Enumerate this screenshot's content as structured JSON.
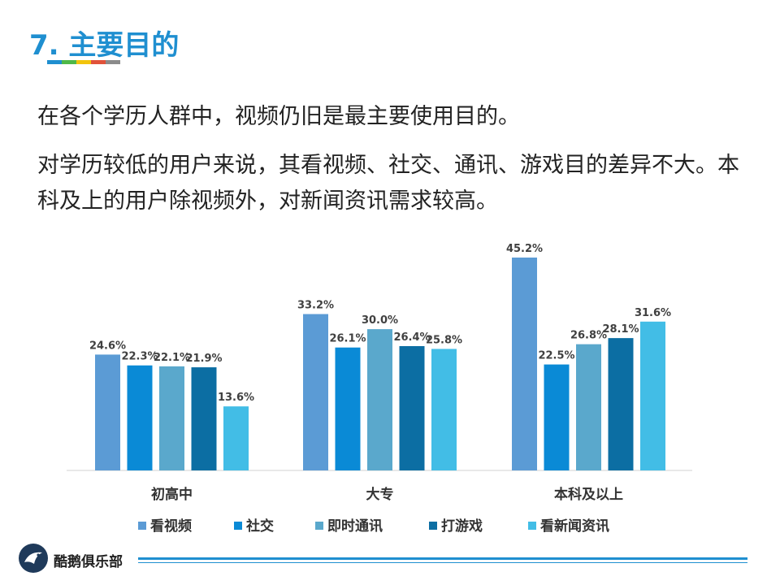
{
  "header": {
    "title": "7. 主要目的",
    "bar_colors": [
      "#1f8fd0",
      "#4fb848",
      "#f2c40c",
      "#e0523a",
      "#8b8b8b"
    ]
  },
  "body": {
    "paragraph1": "在各个学历人群中，视频仍旧是最主要使用目的。",
    "paragraph2": "对学历较低的用户来说，其看视频、社交、通讯、游戏目的差异不大。本科及上的用户除视频外，对新闻资讯需求较高。"
  },
  "chart_data": {
    "type": "bar",
    "categories": [
      "初高中",
      "大专",
      "本科及以上"
    ],
    "series": [
      {
        "name": "看视频",
        "color": "#5b9bd5",
        "values": [
          24.6,
          33.2,
          45.2
        ]
      },
      {
        "name": "社交",
        "color": "#0a8ad6",
        "values": [
          22.3,
          26.1,
          22.5
        ]
      },
      {
        "name": "即时通讯",
        "color": "#5aa8cc",
        "values": [
          22.1,
          30.0,
          26.8
        ]
      },
      {
        "name": "打游戏",
        "color": "#0c6ea3",
        "values": [
          21.9,
          26.4,
          28.1
        ]
      },
      {
        "name": "看新闻资讯",
        "color": "#42bde6",
        "values": [
          13.6,
          25.8,
          31.6
        ]
      }
    ],
    "value_suffix": "%",
    "ylim": [
      0,
      46
    ],
    "legend_position": "bottom",
    "grid": false
  },
  "footer": {
    "logo_text": "酷鹅俱乐部",
    "logo_icon": "penguin-icon"
  }
}
